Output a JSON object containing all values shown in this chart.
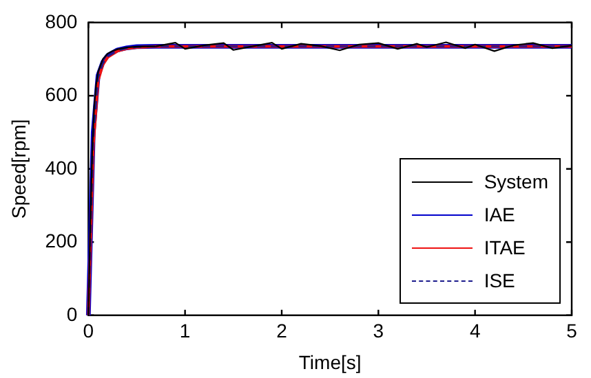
{
  "chart_data": {
    "type": "line",
    "xlabel": "Time[s]",
    "ylabel": "Speed[rpm]",
    "xlim": [
      0,
      5
    ],
    "ylim": [
      0,
      800
    ],
    "xticks": [
      0,
      1,
      2,
      3,
      4,
      5
    ],
    "yticks": [
      0,
      200,
      400,
      600,
      800
    ],
    "grid": false,
    "legend": "bottom right",
    "marker": "none",
    "x": [
      0,
      0.02,
      0.04,
      0.06,
      0.08,
      0.1,
      0.15,
      0.2,
      0.25,
      0.3,
      0.4,
      0.5,
      0.7,
      0.9,
      1.0,
      1.2,
      1.4,
      1.5,
      1.7,
      1.9,
      2.0,
      2.2,
      2.4,
      2.6,
      2.8,
      3.0,
      3.2,
      3.4,
      3.5,
      3.7,
      3.9,
      4.0,
      4.2,
      4.4,
      4.6,
      4.8,
      5.0
    ],
    "series": [
      {
        "name": "System",
        "color": "#000000",
        "line_style": "solid",
        "values": [
          0,
          250,
          450,
          570,
          630,
          665,
          700,
          715,
          722,
          727,
          732,
          734,
          735,
          745,
          728,
          738,
          744,
          725,
          735,
          745,
          728,
          742,
          736,
          724,
          740,
          744,
          728,
          742,
          733,
          746,
          730,
          740,
          722,
          738,
          744,
          730,
          737
        ]
      },
      {
        "name": "IAE",
        "color": "#0000cc",
        "line_style": "solid",
        "x": [
          0,
          0.05,
          0.1,
          0.15,
          0.2,
          0.3,
          0.4,
          0.5,
          0.7,
          1.0,
          5.0
        ],
        "values": [
          0,
          500,
          655,
          692,
          710,
          725,
          731,
          734,
          735,
          735,
          735
        ]
      },
      {
        "name": "ITAE",
        "color": "#ee1111",
        "line_style": "solid",
        "x": [
          0,
          0.05,
          0.1,
          0.15,
          0.2,
          0.3,
          0.4,
          0.5,
          0.7,
          1.0,
          5.0
        ],
        "values": [
          0,
          460,
          640,
          685,
          705,
          722,
          729,
          732,
          735,
          735,
          735
        ]
      },
      {
        "name": "ISE",
        "color": "#1a1a8c",
        "line_style": "dashed",
        "x": [
          0,
          0.05,
          0.1,
          0.15,
          0.2,
          0.3,
          0.4,
          0.5,
          0.7,
          1.0,
          5.0
        ],
        "values": [
          0,
          480,
          648,
          688,
          707,
          723,
          730,
          733,
          735,
          735,
          735
        ]
      }
    ]
  }
}
